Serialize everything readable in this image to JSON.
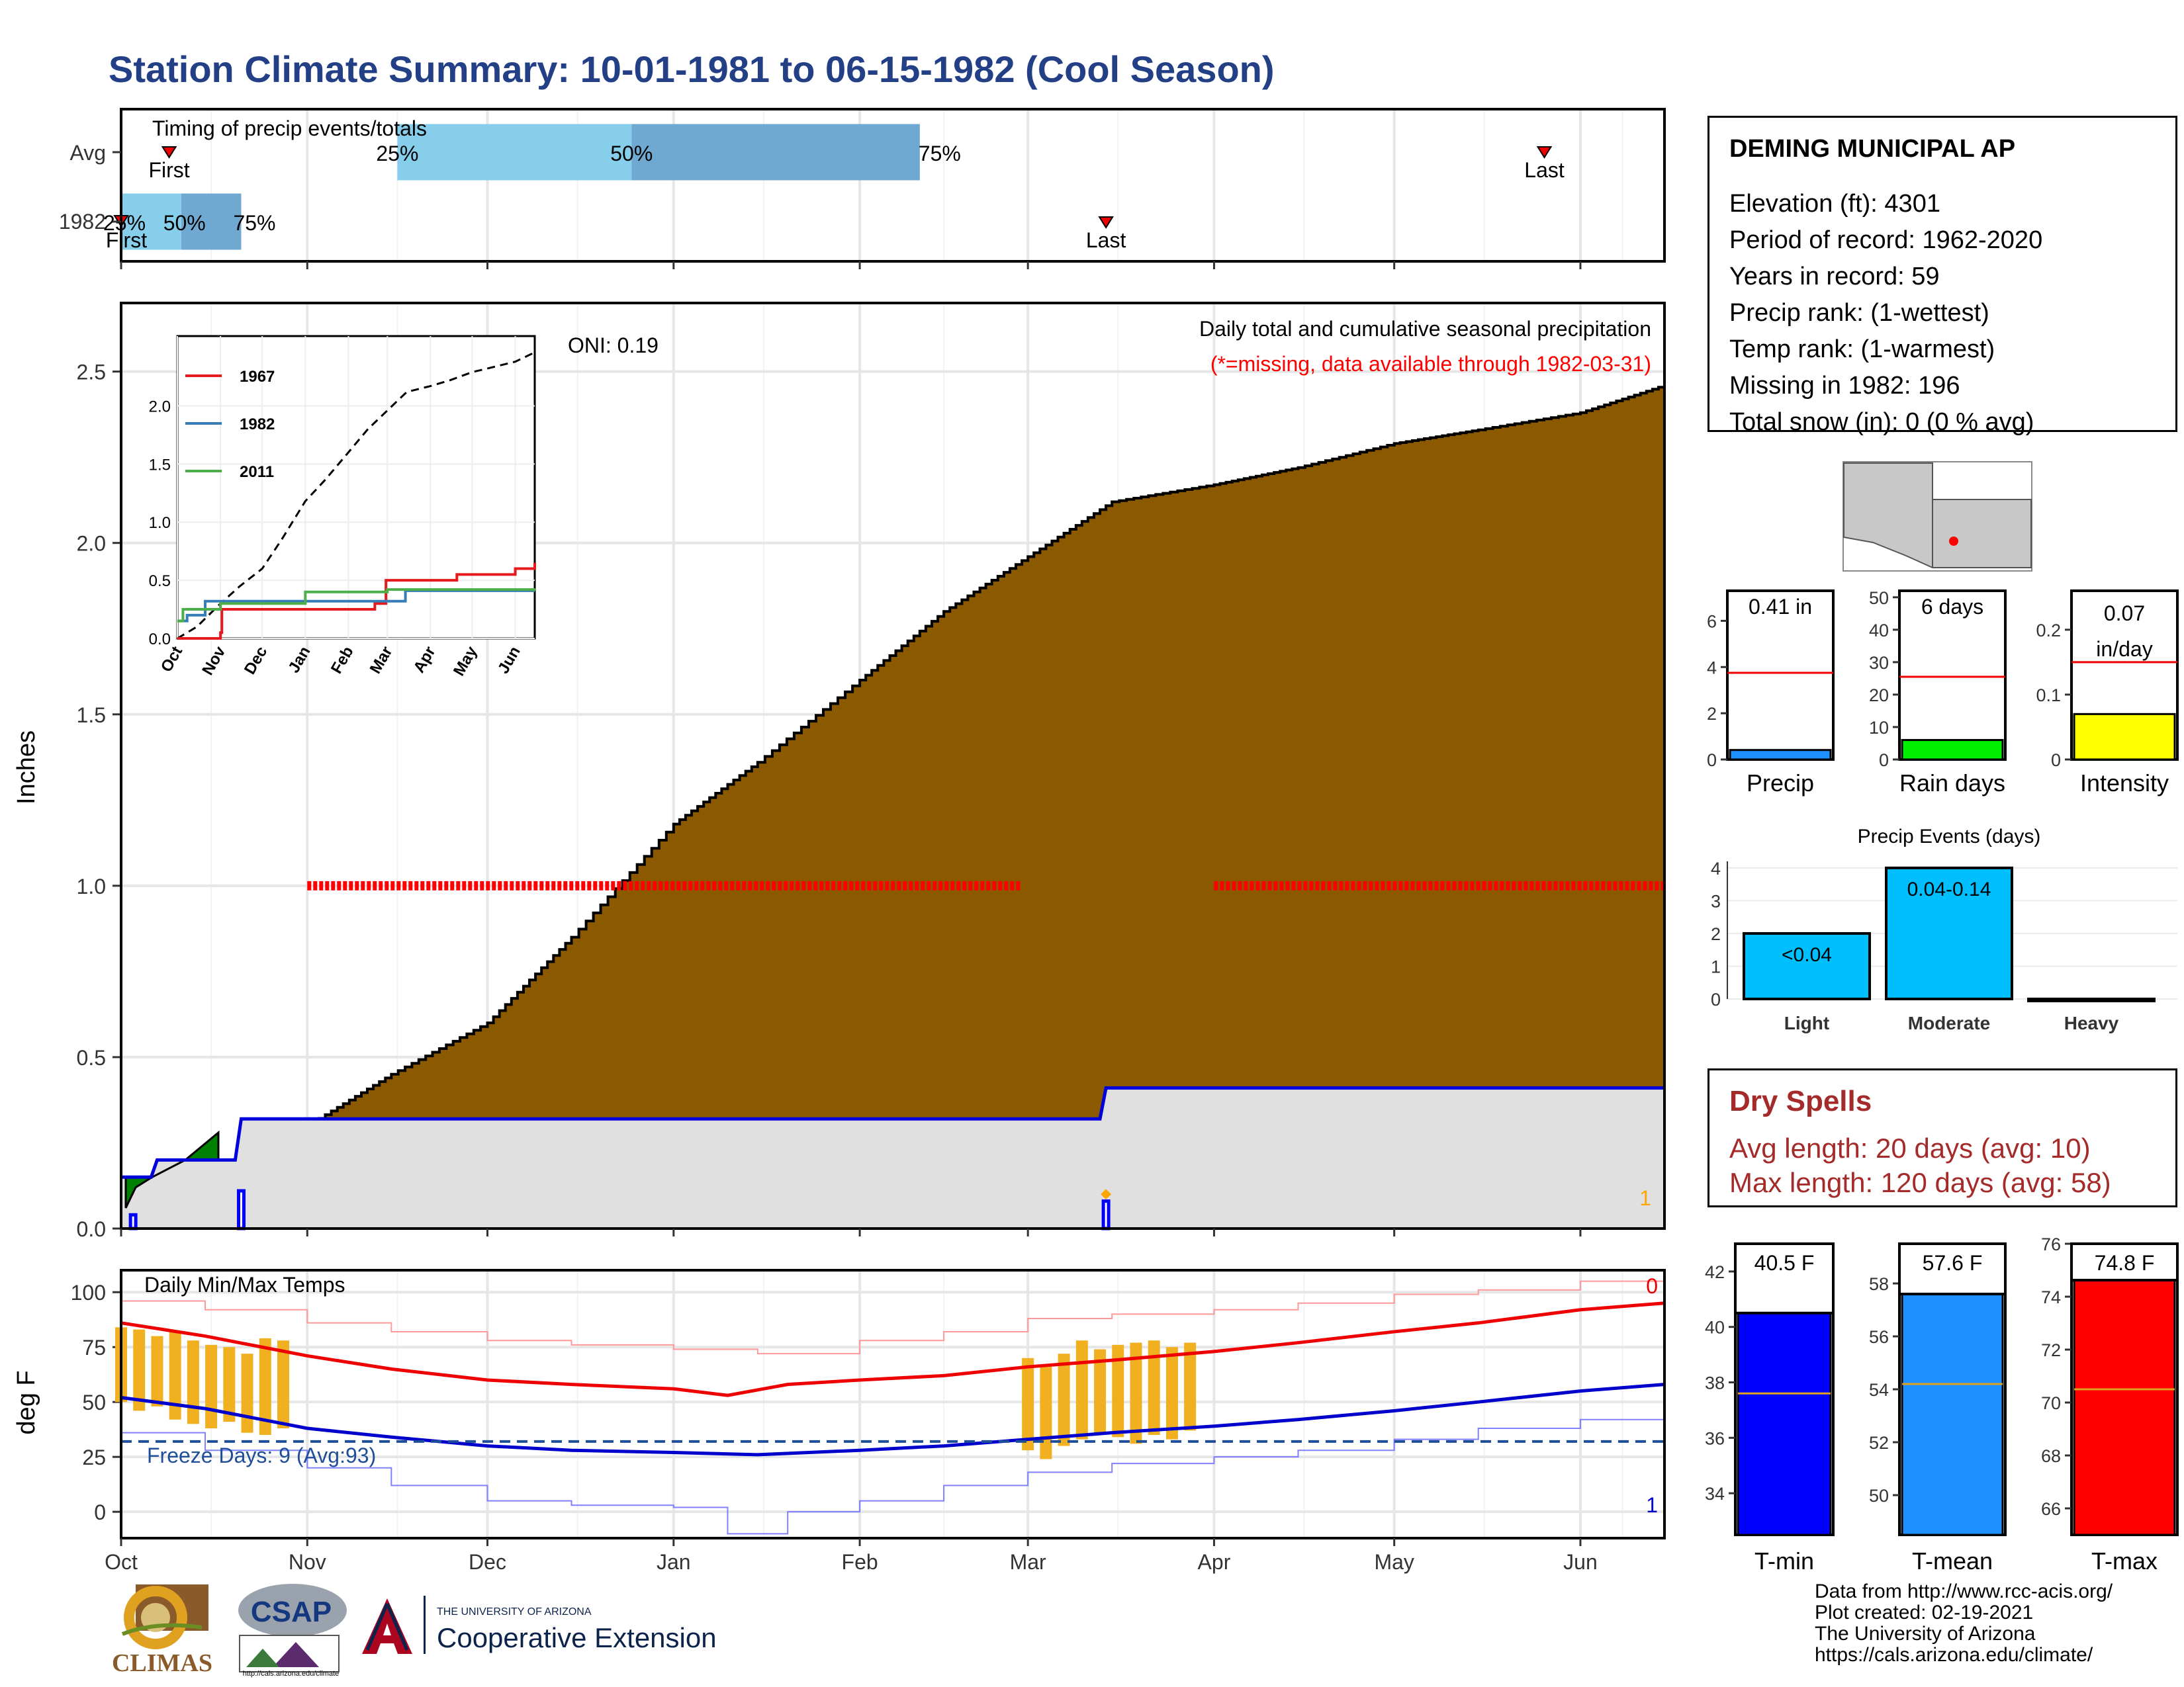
{
  "title": "Station Climate Summary: 10-01-1981 to 06-15-1982 (Cool Season)",
  "station": {
    "name": "DEMING MUNICIPAL AP",
    "lines": [
      "Elevation (ft): 4301",
      "Period of record: 1962-2020",
      "Years in record: 59",
      "Precip rank:  (1-wettest)",
      "Temp rank:  (1-warmest)",
      "Missing in 1982: 196",
      "Total snow (in): 0 (0 % avg)"
    ]
  },
  "dry_spells": {
    "title": "Dry Spells",
    "avg": "Avg length: 20 days (avg: 10)",
    "max": "Max length: 120 days (avg: 58)"
  },
  "credits": [
    "Data from http://www.rcc-acis.org/",
    "Plot created: 02-19-2021",
    "The University of Arizona",
    "https://cals.arizona.edu/climate/"
  ],
  "logos": {
    "climas": "CLIMAS",
    "csap": "CSAP",
    "csap_url": "http://cals.arizona.edu/climate",
    "ua_small": "THE UNIVERSITY OF ARIZONA",
    "ua_big": "Cooperative Extension"
  },
  "chart_data": [
    {
      "type": "bar",
      "panel": "timing",
      "title": "Timing of precip events/totals",
      "categories": [
        "Avg",
        "1982"
      ],
      "date_axis": [
        "Oct",
        "Nov",
        "Dec",
        "Jan",
        "Feb",
        "Mar",
        "Apr",
        "May",
        "Jun"
      ],
      "avg": {
        "p25": "1981-11-16",
        "p50": "1981-12-25",
        "p75": "1982-02-11",
        "first": "1981-10-09",
        "last": "1982-05-26"
      },
      "y1982": {
        "p25": "1981-10-01",
        "p50": "1981-10-11",
        "p75": "1981-10-21",
        "first": "1981-10-01",
        "last": "1982-03-14"
      },
      "labels": {
        "p25": "25%",
        "p50": "50%",
        "p75": "75%",
        "first": "First",
        "last": "Last"
      }
    },
    {
      "type": "area",
      "panel": "precip",
      "ylabel": "Inches",
      "ylim": [
        0,
        2.7
      ],
      "yticks": [
        0.0,
        0.5,
        1.0,
        1.5,
        2.0,
        2.5
      ],
      "x_range": [
        "1981-10-01",
        "1982-06-15"
      ],
      "oni": "ONI: 0.19",
      "note": "Daily total and cumulative seasonal precipitation",
      "missing_note": "(*=missing, data available through 1982-03-31)",
      "avg_cumulative": [
        [
          "1981-10-01",
          0.0
        ],
        [
          "1981-10-15",
          0.1
        ],
        [
          "1981-11-01",
          0.3
        ],
        [
          "1981-11-15",
          0.45
        ],
        [
          "1981-12-01",
          0.6
        ],
        [
          "1981-12-15",
          0.85
        ],
        [
          "1982-01-01",
          1.18
        ],
        [
          "1982-01-15",
          1.36
        ],
        [
          "1982-02-01",
          1.6
        ],
        [
          "1982-02-15",
          1.8
        ],
        [
          "1982-03-01",
          1.96
        ],
        [
          "1982-03-15",
          2.12
        ],
        [
          "1982-04-01",
          2.17
        ],
        [
          "1982-04-15",
          2.22
        ],
        [
          "1982-05-01",
          2.29
        ],
        [
          "1982-05-15",
          2.33
        ],
        [
          "1982-06-01",
          2.38
        ],
        [
          "1982-06-15",
          2.46
        ]
      ],
      "y1982_cumulative": [
        [
          "1981-10-01",
          0.15
        ],
        [
          "1981-10-06",
          0.15
        ],
        [
          "1981-10-07",
          0.2
        ],
        [
          "1981-10-20",
          0.2
        ],
        [
          "1981-10-21",
          0.32
        ],
        [
          "1982-03-13",
          0.32
        ],
        [
          "1982-03-14",
          0.41
        ],
        [
          "1982-06-15",
          0.41
        ]
      ],
      "y1982_daily": [
        [
          "1981-10-03",
          0.04
        ],
        [
          "1981-10-21",
          0.11
        ],
        [
          "1982-03-14",
          0.08
        ]
      ],
      "missing_periods": [
        [
          "1981-11-01",
          "1982-02-28"
        ],
        [
          "1982-04-01",
          "1982-06-15"
        ]
      ],
      "missing_marker_value": 1.0,
      "corner_count": "1",
      "inset": {
        "type": "line",
        "series": [
          {
            "name": "1967",
            "color": "#e41a1c",
            "points": [
              [
                "1981-10-01",
                0.0
              ],
              [
                "1981-10-28",
                0.0
              ],
              [
                "1981-11-01",
                0.05
              ],
              [
                "1981-11-02",
                0.25
              ],
              [
                "1982-02-05",
                0.25
              ],
              [
                "1982-02-20",
                0.3
              ],
              [
                "1982-02-28",
                0.5
              ],
              [
                "1982-04-20",
                0.55
              ],
              [
                "1982-06-01",
                0.6
              ],
              [
                "1982-06-15",
                0.65
              ]
            ]
          },
          {
            "name": "1982",
            "color": "#377eb8",
            "points": [
              [
                "1981-10-01",
                0.15
              ],
              [
                "1981-10-08",
                0.2
              ],
              [
                "1981-10-21",
                0.32
              ],
              [
                "1982-03-14",
                0.41
              ],
              [
                "1982-06-15",
                0.41
              ]
            ]
          },
          {
            "name": "2011",
            "color": "#4daf4a",
            "points": [
              [
                "1981-10-01",
                0.15
              ],
              [
                "1981-10-05",
                0.25
              ],
              [
                "1981-11-01",
                0.3
              ],
              [
                "1982-01-01",
                0.4
              ],
              [
                "1982-03-01",
                0.42
              ],
              [
                "1982-06-15",
                0.43
              ]
            ]
          }
        ],
        "avg_dashed": true,
        "yticks": [
          0.0,
          0.5,
          1.0,
          1.5,
          2.0
        ],
        "xticks": [
          "Oct",
          "Nov",
          "Dec",
          "Jan",
          "Feb",
          "Mar",
          "Apr",
          "May",
          "Jun"
        ]
      }
    },
    {
      "type": "line",
      "panel": "temps",
      "title": "Daily Min/Max Temps",
      "ylabel": "deg F",
      "ylim": [
        -12,
        110
      ],
      "yticks": [
        0,
        25,
        50,
        75,
        100
      ],
      "freeze_label": "Freeze Days: 9 (Avg:93)",
      "freeze_line": 32,
      "count_top": "0",
      "count_bottom": "1",
      "avg_max": [
        [
          "1981-10-01",
          86
        ],
        [
          "1981-10-15",
          80
        ],
        [
          "1981-11-01",
          71
        ],
        [
          "1981-11-15",
          65
        ],
        [
          "1981-12-01",
          60
        ],
        [
          "1981-12-15",
          58
        ],
        [
          "1982-01-01",
          56
        ],
        [
          "1982-01-10",
          53
        ],
        [
          "1982-01-20",
          58
        ],
        [
          "1982-02-01",
          60
        ],
        [
          "1982-02-15",
          62
        ],
        [
          "1982-03-01",
          66
        ],
        [
          "1982-03-15",
          69
        ],
        [
          "1982-04-01",
          73
        ],
        [
          "1982-04-15",
          77
        ],
        [
          "1982-05-01",
          82
        ],
        [
          "1982-05-15",
          86
        ],
        [
          "1982-06-01",
          92
        ],
        [
          "1982-06-15",
          95
        ]
      ],
      "avg_min": [
        [
          "1981-10-01",
          52
        ],
        [
          "1981-10-15",
          47
        ],
        [
          "1981-11-01",
          38
        ],
        [
          "1981-11-15",
          34
        ],
        [
          "1981-12-01",
          30
        ],
        [
          "1981-12-15",
          28
        ],
        [
          "1982-01-01",
          27
        ],
        [
          "1982-01-15",
          26
        ],
        [
          "1982-02-01",
          28
        ],
        [
          "1982-02-15",
          30
        ],
        [
          "1982-03-01",
          33
        ],
        [
          "1982-03-15",
          36
        ],
        [
          "1982-04-01",
          39
        ],
        [
          "1982-04-15",
          42
        ],
        [
          "1982-05-01",
          46
        ],
        [
          "1982-05-15",
          50
        ],
        [
          "1982-06-01",
          55
        ],
        [
          "1982-06-15",
          58
        ]
      ],
      "record_max": [
        [
          "1981-10-01",
          96
        ],
        [
          "1981-10-15",
          92
        ],
        [
          "1981-11-01",
          86
        ],
        [
          "1981-11-15",
          82
        ],
        [
          "1981-12-01",
          78
        ],
        [
          "1981-12-15",
          76
        ],
        [
          "1982-01-01",
          74
        ],
        [
          "1982-01-15",
          72
        ],
        [
          "1982-02-01",
          78
        ],
        [
          "1982-02-15",
          82
        ],
        [
          "1982-03-01",
          88
        ],
        [
          "1982-03-15",
          90
        ],
        [
          "1982-04-01",
          92
        ],
        [
          "1982-04-15",
          95
        ],
        [
          "1982-05-01",
          99
        ],
        [
          "1982-05-15",
          101
        ],
        [
          "1982-06-01",
          105
        ],
        [
          "1982-06-15",
          106
        ]
      ],
      "record_min": [
        [
          "1981-10-01",
          36
        ],
        [
          "1981-10-15",
          28
        ],
        [
          "1981-11-01",
          20
        ],
        [
          "1981-11-15",
          12
        ],
        [
          "1981-12-01",
          5
        ],
        [
          "1981-12-15",
          3
        ],
        [
          "1982-01-01",
          2
        ],
        [
          "1982-01-10",
          -10
        ],
        [
          "1982-01-20",
          0
        ],
        [
          "1982-02-01",
          5
        ],
        [
          "1982-02-15",
          12
        ],
        [
          "1982-03-01",
          18
        ],
        [
          "1982-03-15",
          22
        ],
        [
          "1982-04-01",
          25
        ],
        [
          "1982-04-15",
          28
        ],
        [
          "1982-05-01",
          33
        ],
        [
          "1982-05-15",
          38
        ],
        [
          "1982-06-01",
          42
        ],
        [
          "1982-06-15",
          48
        ]
      ],
      "obs_range_1982": [
        {
          "date": "1981-10-01",
          "min": 50,
          "max": 84
        },
        {
          "date": "1981-10-04",
          "min": 46,
          "max": 83
        },
        {
          "date": "1981-10-07",
          "min": 48,
          "max": 80
        },
        {
          "date": "1981-10-10",
          "min": 42,
          "max": 82
        },
        {
          "date": "1981-10-13",
          "min": 40,
          "max": 78
        },
        {
          "date": "1981-10-16",
          "min": 38,
          "max": 76
        },
        {
          "date": "1981-10-19",
          "min": 41,
          "max": 75
        },
        {
          "date": "1981-10-22",
          "min": 36,
          "max": 72
        },
        {
          "date": "1981-10-25",
          "min": 35,
          "max": 79
        },
        {
          "date": "1981-10-28",
          "min": 38,
          "max": 78
        },
        {
          "date": "1982-03-01",
          "min": 28,
          "max": 70
        },
        {
          "date": "1982-03-04",
          "min": 24,
          "max": 66
        },
        {
          "date": "1982-03-07",
          "min": 30,
          "max": 72
        },
        {
          "date": "1982-03-10",
          "min": 33,
          "max": 78
        },
        {
          "date": "1982-03-13",
          "min": 36,
          "max": 74
        },
        {
          "date": "1982-03-16",
          "min": 34,
          "max": 76
        },
        {
          "date": "1982-03-19",
          "min": 31,
          "max": 77
        },
        {
          "date": "1982-03-22",
          "min": 35,
          "max": 78
        },
        {
          "date": "1982-03-25",
          "min": 33,
          "max": 75
        },
        {
          "date": "1982-03-28",
          "min": 37,
          "max": 77
        }
      ]
    },
    {
      "type": "bar",
      "panel": "totals",
      "categories": [
        "Precip",
        "Rain days",
        "Intensity"
      ],
      "values": [
        0.41,
        6,
        0.07
      ],
      "averages": [
        3.75,
        25.5,
        0.15
      ],
      "labels": [
        "0.41 in",
        "6 days",
        "0.07 in/day"
      ],
      "ylims": [
        [
          0,
          7.3
        ],
        [
          0,
          52
        ],
        [
          0,
          0.26
        ]
      ],
      "yticks": [
        [
          0,
          2,
          4,
          6
        ],
        [
          0,
          10,
          20,
          30,
          40,
          50
        ],
        [
          0.0,
          0.1,
          0.2
        ]
      ],
      "colors": [
        "#1e90ff",
        "#00ee00",
        "#ffff00"
      ]
    },
    {
      "type": "bar",
      "panel": "events",
      "title": "Precip Events (days)",
      "categories": [
        "Light",
        "Moderate",
        "Heavy"
      ],
      "values": [
        2,
        4,
        0
      ],
      "bar_labels": [
        "<0.04",
        "0.04-0.14",
        ""
      ],
      "ylim": [
        0,
        4.2
      ],
      "yticks": [
        0,
        1,
        2,
        3,
        4
      ],
      "color": "#00bfff"
    },
    {
      "type": "bar",
      "panel": "temp_means",
      "categories": [
        "T-min",
        "T-mean",
        "T-max"
      ],
      "values": [
        40.5,
        57.6,
        74.8
      ],
      "averages": [
        37.6,
        54.2,
        70.5
      ],
      "labels": [
        "40.5 F",
        "57.6 F",
        "74.8 F"
      ],
      "ylims": [
        [
          32.5,
          43
        ],
        [
          48.5,
          59.5
        ],
        [
          65,
          76
        ]
      ],
      "yticks": [
        [
          34,
          36,
          38,
          40,
          42
        ],
        [
          50,
          52,
          54,
          56,
          58
        ],
        [
          66,
          68,
          70,
          72,
          74,
          76
        ]
      ],
      "colors": [
        "#0000ff",
        "#1e90ff",
        "#ff0000"
      ]
    }
  ]
}
